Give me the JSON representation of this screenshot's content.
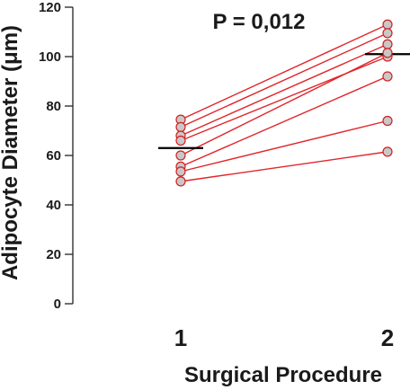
{
  "chart_data": {
    "type": "scatter",
    "subtype": "paired-lines",
    "categories": [
      "1",
      "2"
    ],
    "xlabel": "Surgical Procedure",
    "ylabel": "Adipocyte Diameter (μm)",
    "ylim": [
      0,
      120
    ],
    "yticks": [
      0,
      20,
      40,
      60,
      80,
      100,
      120
    ],
    "annotation": "P = 0,012",
    "grid": false,
    "pairs": [
      [
        74.5,
        113
      ],
      [
        71.5,
        109.5
      ],
      [
        68,
        105
      ],
      [
        66,
        100
      ],
      [
        60,
        101.5
      ],
      [
        55.5,
        92
      ],
      [
        53.5,
        74
      ],
      [
        49.5,
        61.5
      ]
    ],
    "means": [
      63,
      101
    ],
    "colors": {
      "line": "#e0262b",
      "marker_fill": "#c8c8c8",
      "marker_edge": "#d42020",
      "mean": "#000000",
      "axis": "#222222"
    }
  }
}
